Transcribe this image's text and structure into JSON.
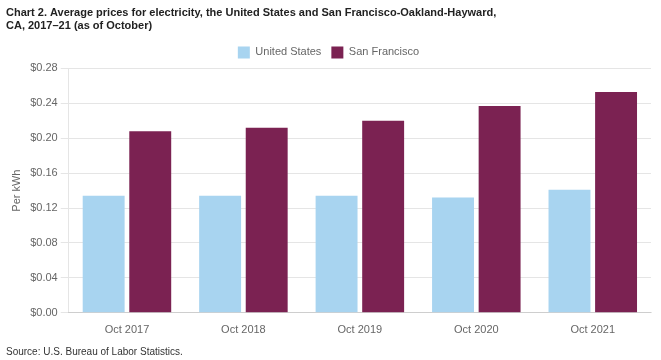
{
  "chart_data": {
    "type": "bar",
    "title": "Chart 2. Average prices for electricity, the United States and San Francisco-Oakland-Hayward,\nCA, 2017–21 (as of October)",
    "ylabel": "Per kWh",
    "annotations": [
      "Source: U.S. Bureau of Labor Statistics."
    ],
    "categories": [
      "Oct 2017",
      "Oct 2018",
      "Oct 2019",
      "Oct 2020",
      "Oct 2021"
    ],
    "series": [
      {
        "name": "United States",
        "color": "#a8d4f0",
        "values": [
          0.134,
          0.134,
          0.134,
          0.132,
          0.141
        ]
      },
      {
        "name": "San Francisco",
        "color": "#7b2252",
        "values": [
          0.208,
          0.212,
          0.22,
          0.237,
          0.253
        ]
      }
    ],
    "ylim": [
      0,
      0.28
    ],
    "yticks": [
      {
        "value": 0.0,
        "label": "$0.00"
      },
      {
        "value": 0.04,
        "label": "$0.04"
      },
      {
        "value": 0.08,
        "label": "$0.08"
      },
      {
        "value": 0.12,
        "label": "$0.12"
      },
      {
        "value": 0.16,
        "label": "$0.16"
      },
      {
        "value": 0.2,
        "label": "$0.20"
      },
      {
        "value": 0.24,
        "label": "$0.24"
      },
      {
        "value": 0.28,
        "label": "$0.28"
      }
    ],
    "grid": true,
    "legend": "top"
  }
}
